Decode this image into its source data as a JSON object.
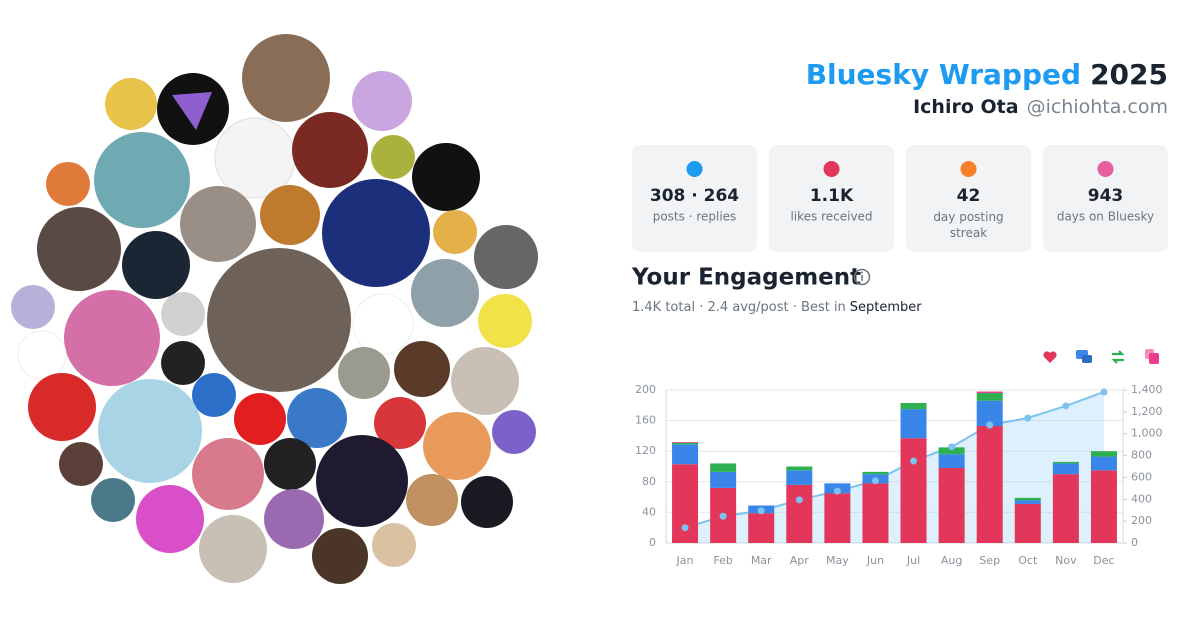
{
  "header": {
    "title": "Bluesky Wrapped",
    "year": "2025",
    "name": "Ichiro Ota",
    "handle": "@ichiohta.com"
  },
  "stats": [
    {
      "value": "308 · 264",
      "label": "posts · replies",
      "color": "#1d9bf0"
    },
    {
      "value": "1.1K",
      "label": "likes received",
      "color": "#e2375a"
    },
    {
      "value": "42",
      "label": "day posting streak",
      "color": "#f7812b"
    },
    {
      "value": "943",
      "label": "days on Bluesky",
      "color": "#e85d9f"
    }
  ],
  "engagement": {
    "title": "Your Engagement",
    "summary": "1.4K total · 2.4 avg/post · Best in",
    "best": "September"
  },
  "chart_data": {
    "type": "stacked_bar_line",
    "categories": [
      "Jan",
      "Feb",
      "Mar",
      "Apr",
      "May",
      "Jun",
      "Jul",
      "Aug",
      "Sep",
      "Oct",
      "Nov",
      "Dec"
    ],
    "series": [
      {
        "color": "#e2375a",
        "values": [
          103,
          72,
          39,
          76,
          65,
          78,
          137,
          98,
          153,
          51,
          90,
          95
        ]
      },
      {
        "color": "#3a86e8",
        "values": [
          26,
          21,
          10,
          19,
          13,
          12,
          38,
          18,
          33,
          5,
          14,
          18
        ]
      },
      {
        "color": "#2db14f",
        "values": [
          2,
          11,
          0,
          5,
          0,
          3,
          8,
          9,
          10,
          3,
          2,
          7
        ]
      },
      {
        "color": "#e83e8c",
        "values": [
          1,
          0,
          0,
          0,
          0,
          0,
          0,
          0,
          2,
          0,
          0,
          0
        ]
      },
      {
        "color": "#7cc3ef",
        "axis": "y2",
        "values": [
          140,
          245,
          295,
          395,
          475,
          570,
          750,
          880,
          1080,
          1144,
          1254,
          1382
        ]
      }
    ],
    "ylim": [
      0,
      200
    ],
    "yticks": [
      0,
      40,
      80,
      120,
      160,
      200
    ],
    "y2lim": [
      0,
      1400
    ],
    "y2ticks": [
      0,
      200,
      400,
      600,
      800,
      {
        "value": 1000,
        "label": "1,000"
      },
      {
        "value": 1200,
        "label": "1,200"
      },
      {
        "value": 1400,
        "label": "1,400"
      }
    ],
    "grid": true
  }
}
